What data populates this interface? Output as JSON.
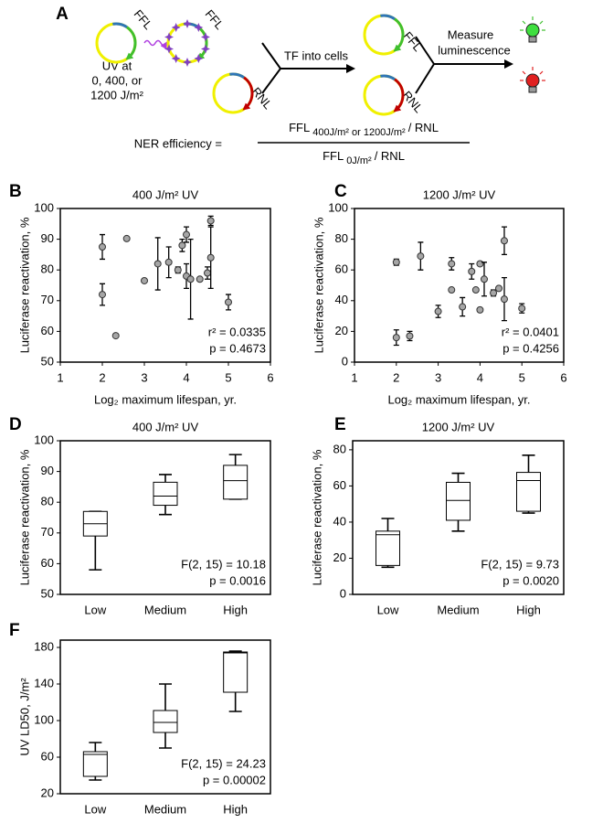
{
  "diagram": {
    "panel_label": "A",
    "ffl": "FFL",
    "rnl": "RNL",
    "uv_text": [
      "UV at",
      "0, 400, or",
      "1200 J/m²"
    ],
    "transfection": "TF into cells",
    "measure": [
      "Measure",
      "luminescence"
    ],
    "formula_lead": "NER efficiency =",
    "numerator": [
      "FFL",
      "400J/m² or 1200J/m²",
      "/ RNL"
    ],
    "denominator": [
      "FFL",
      "0J/m²",
      "/ RNL"
    ]
  },
  "chart_data": [
    {
      "panel_label": "B",
      "type": "scatter",
      "title": "400 J/m² UV",
      "xlabel": "Log₂ maximum lifespan, yr.",
      "ylabel": "Luciferase reactivation, %",
      "color": "#a6a6a6",
      "x": [
        2.0,
        2.0,
        2.32,
        2.58,
        3.0,
        3.32,
        3.58,
        3.8,
        3.9,
        4.0,
        4.0,
        4.1,
        4.32,
        4.5,
        4.58,
        4.58,
        5.0
      ],
      "values": [
        87.5,
        72,
        58.6,
        90.2,
        76.5,
        82,
        82.5,
        80,
        88,
        91.5,
        78,
        77,
        77,
        79,
        84,
        96,
        69.5
      ],
      "errors": [
        4,
        3.5,
        0.3,
        0.3,
        0.5,
        8.5,
        5,
        1,
        2,
        2.5,
        4,
        13,
        0.5,
        2,
        10,
        1.5,
        2.5
      ],
      "xlim": [
        1,
        6
      ],
      "xticks": [
        1,
        2,
        3,
        4,
        5,
        6
      ],
      "ylim": [
        50,
        100
      ],
      "yticks": [
        50,
        60,
        70,
        80,
        90,
        100
      ],
      "annotations": [
        "r² = 0.0335",
        "p = 0.4673"
      ]
    },
    {
      "panel_label": "C",
      "type": "scatter",
      "title": "1200 J/m² UV",
      "xlabel": "Log₂ maximum lifespan, yr.",
      "ylabel": "Luciferase reactivation, %",
      "color": "#a6a6a6",
      "x": [
        2.0,
        2.0,
        2.32,
        2.58,
        3.0,
        3.32,
        3.32,
        3.58,
        3.8,
        3.9,
        4.0,
        4.0,
        4.1,
        4.32,
        4.45,
        4.58,
        4.58,
        5.0
      ],
      "values": [
        65,
        16,
        17,
        69,
        33,
        64,
        47,
        36,
        59,
        47,
        64,
        34,
        54,
        45,
        48,
        79,
        41,
        35
      ],
      "errors": [
        2,
        5,
        3,
        9,
        4,
        4,
        1,
        6,
        5,
        1,
        1,
        1,
        11,
        2,
        1,
        9,
        14,
        3
      ],
      "xlim": [
        1,
        6
      ],
      "xticks": [
        1,
        2,
        3,
        4,
        5,
        6
      ],
      "ylim": [
        0,
        100
      ],
      "yticks": [
        0,
        20,
        40,
        60,
        80,
        100
      ],
      "annotations": [
        "r² = 0.0401",
        "p = 0.4256"
      ]
    },
    {
      "panel_label": "D",
      "type": "box",
      "title": "400 J/m² UV",
      "ylabel": "Luciferase reactivation, %",
      "categories": [
        "Low",
        "Medium",
        "High"
      ],
      "min": [
        58,
        76,
        81
      ],
      "q1": [
        69,
        79,
        81
      ],
      "median": [
        73,
        82,
        87
      ],
      "q3": [
        77,
        86.5,
        92
      ],
      "max": [
        77,
        89,
        95.5
      ],
      "ylim": [
        50,
        100
      ],
      "yticks": [
        50,
        60,
        70,
        80,
        90,
        100
      ],
      "annotations": [
        "F(2, 15) = 10.18",
        "p = 0.0016"
      ]
    },
    {
      "panel_label": "E",
      "type": "box",
      "title": "1200 J/m² UV",
      "ylabel": "Luciferase reactivation, %",
      "categories": [
        "Low",
        "Medium",
        "High"
      ],
      "min": [
        15,
        35,
        45
      ],
      "q1": [
        16,
        41,
        46
      ],
      "median": [
        33,
        52,
        63
      ],
      "q3": [
        35,
        62,
        67.5
      ],
      "max": [
        42,
        67,
        77
      ],
      "ylim": [
        0,
        85
      ],
      "yticks": [
        0,
        20,
        40,
        60,
        80
      ],
      "annotations": [
        "F(2, 15) = 9.73",
        "p = 0.0020"
      ]
    },
    {
      "panel_label": "F",
      "type": "box",
      "ylabel": "UV LD50, J/m²",
      "categories": [
        "Low",
        "Medium",
        "High"
      ],
      "min": [
        35,
        70,
        110
      ],
      "q1": [
        39,
        87,
        131
      ],
      "median": [
        63,
        98,
        174
      ],
      "q3": [
        66,
        111,
        175
      ],
      "max": [
        76,
        140,
        176
      ],
      "ylim": [
        20,
        188
      ],
      "yticks": [
        20,
        60,
        100,
        140,
        180
      ],
      "annotations": [
        "F(2, 15) = 24.23",
        "p = 0.00002"
      ]
    }
  ]
}
